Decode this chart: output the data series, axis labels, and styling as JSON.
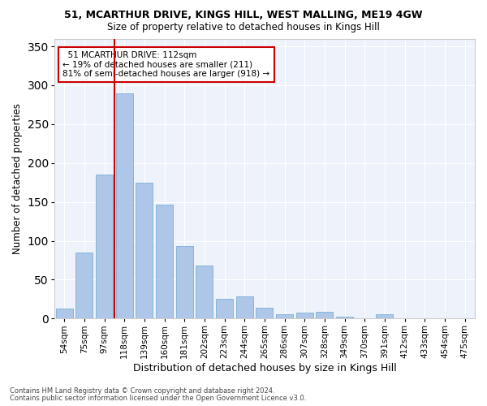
{
  "title1": "51, MCARTHUR DRIVE, KINGS HILL, WEST MALLING, ME19 4GW",
  "title2": "Size of property relative to detached houses in Kings Hill",
  "xlabel": "Distribution of detached houses by size in Kings Hill",
  "ylabel": "Number of detached properties",
  "categories": [
    "54sqm",
    "75sqm",
    "97sqm",
    "118sqm",
    "139sqm",
    "160sqm",
    "181sqm",
    "202sqm",
    "223sqm",
    "244sqm",
    "265sqm",
    "286sqm",
    "307sqm",
    "328sqm",
    "349sqm",
    "370sqm",
    "391sqm",
    "412sqm",
    "433sqm",
    "454sqm",
    "475sqm"
  ],
  "values": [
    13,
    85,
    185,
    290,
    175,
    147,
    93,
    68,
    25,
    29,
    14,
    6,
    8,
    9,
    3,
    0,
    6,
    0,
    0,
    0,
    0
  ],
  "bar_color": "#aec6e8",
  "bar_edgecolor": "#7aafd4",
  "vline_color": "#cc0000",
  "annotation_text": "  51 MCARTHUR DRIVE: 112sqm\n← 19% of detached houses are smaller (211)\n81% of semi-detached houses are larger (918) →",
  "ylim": [
    0,
    360
  ],
  "yticks": [
    0,
    50,
    100,
    150,
    200,
    250,
    300,
    350
  ],
  "bg_color": "#eef3fb",
  "grid_color": "#ffffff",
  "footer1": "Contains HM Land Registry data © Crown copyright and database right 2024.",
  "footer2": "Contains public sector information licensed under the Open Government Licence v3.0."
}
